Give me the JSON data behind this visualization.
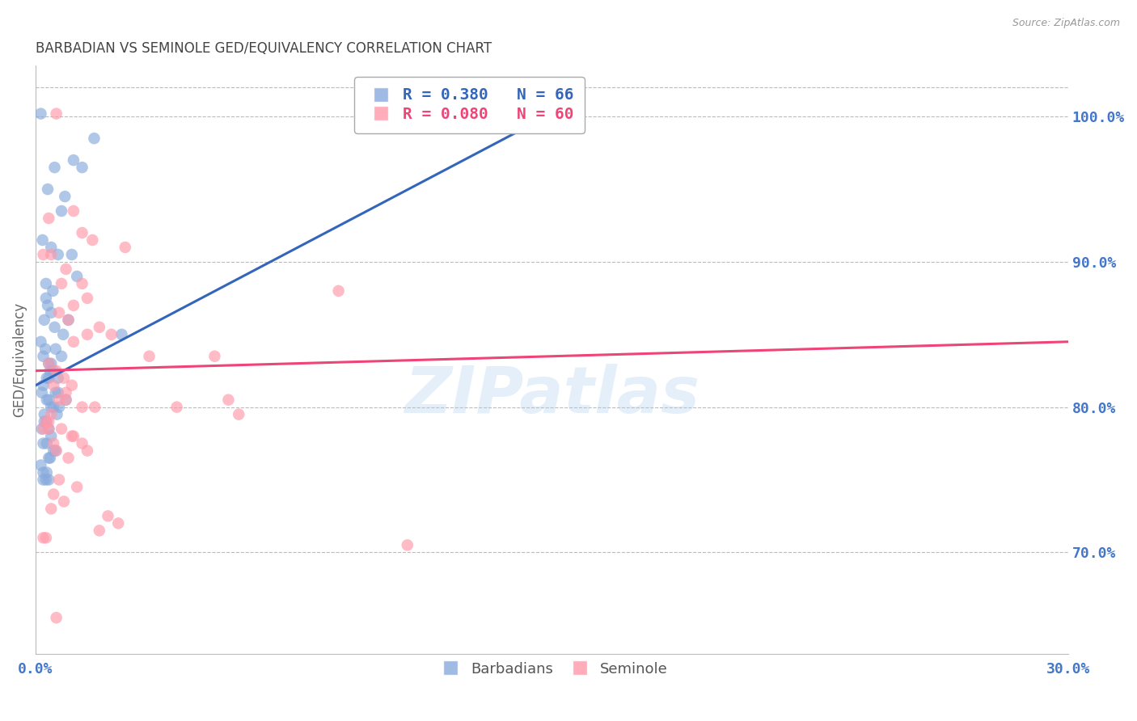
{
  "title": "BARBADIAN VS SEMINOLE GED/EQUIVALENCY CORRELATION CHART",
  "source": "Source: ZipAtlas.com",
  "ylabel": "GED/Equivalency",
  "right_yticks": [
    70.0,
    80.0,
    90.0,
    100.0
  ],
  "blue_label": "Barbadians",
  "pink_label": "Seminole",
  "blue_R": 0.38,
  "blue_N": 66,
  "pink_R": 0.08,
  "pink_N": 60,
  "blue_color": "#88AADD",
  "pink_color": "#FF99AA",
  "blue_line_color": "#3366BB",
  "pink_line_color": "#EE4477",
  "background_color": "#FFFFFF",
  "grid_color": "#BBBBBB",
  "title_color": "#444444",
  "axis_label_color": "#4477CC",
  "blue_x": [
    0.15,
    0.55,
    1.1,
    1.35,
    1.7,
    0.35,
    0.85,
    0.75,
    0.2,
    0.45,
    0.65,
    1.05,
    1.2,
    0.3,
    0.5,
    0.3,
    0.35,
    0.45,
    0.25,
    0.55,
    0.8,
    0.15,
    0.28,
    0.22,
    0.38,
    0.42,
    0.52,
    0.32,
    0.22,
    0.18,
    0.58,
    0.38,
    0.32,
    0.45,
    0.68,
    0.25,
    0.32,
    0.25,
    0.18,
    0.38,
    0.45,
    0.32,
    0.22,
    0.52,
    0.58,
    0.42,
    0.38,
    0.15,
    0.22,
    0.32,
    2.5,
    0.65,
    0.95,
    0.58,
    0.75,
    0.38,
    0.3,
    0.22,
    14.2,
    14.8,
    0.45,
    0.38,
    0.65,
    0.88,
    0.52,
    0.62
  ],
  "blue_y": [
    100.2,
    96.5,
    97.0,
    96.5,
    98.5,
    95.0,
    94.5,
    93.5,
    91.5,
    91.0,
    90.5,
    90.5,
    89.0,
    88.5,
    88.0,
    87.5,
    87.0,
    86.5,
    86.0,
    85.5,
    85.0,
    84.5,
    84.0,
    83.5,
    83.0,
    82.5,
    82.5,
    82.0,
    81.5,
    81.0,
    81.0,
    80.5,
    80.5,
    80.0,
    80.0,
    79.5,
    79.0,
    79.0,
    78.5,
    78.5,
    78.0,
    77.5,
    77.5,
    77.0,
    77.0,
    76.5,
    76.5,
    76.0,
    75.5,
    75.5,
    85.0,
    82.0,
    86.0,
    84.0,
    83.5,
    75.0,
    75.0,
    75.0,
    100.0,
    100.2,
    83.0,
    82.0,
    81.0,
    80.5,
    80.0,
    79.5
  ],
  "pink_x": [
    0.6,
    1.1,
    0.38,
    1.35,
    1.65,
    2.6,
    0.22,
    0.45,
    0.88,
    0.75,
    1.35,
    1.5,
    1.1,
    0.68,
    0.95,
    1.85,
    2.2,
    1.5,
    1.1,
    3.3,
    5.2,
    8.8,
    0.38,
    0.6,
    0.82,
    0.52,
    1.05,
    0.88,
    0.68,
    1.35,
    1.72,
    0.45,
    0.3,
    0.38,
    0.22,
    1.1,
    1.35,
    1.5,
    0.6,
    0.95,
    5.6,
    5.9,
    4.1,
    0.68,
    1.2,
    0.52,
    0.82,
    0.45,
    2.1,
    2.4,
    1.85,
    0.3,
    0.22,
    10.8,
    0.6,
    0.88,
    0.38,
    0.75,
    1.05,
    0.52
  ],
  "pink_y": [
    100.2,
    93.5,
    93.0,
    92.0,
    91.5,
    91.0,
    90.5,
    90.5,
    89.5,
    88.5,
    88.5,
    87.5,
    87.0,
    86.5,
    86.0,
    85.5,
    85.0,
    85.0,
    84.5,
    83.5,
    83.5,
    88.0,
    83.0,
    82.5,
    82.0,
    81.5,
    81.5,
    81.0,
    80.5,
    80.0,
    80.0,
    79.5,
    79.0,
    78.5,
    78.5,
    78.0,
    77.5,
    77.0,
    77.0,
    76.5,
    80.5,
    79.5,
    80.0,
    75.0,
    74.5,
    74.0,
    73.5,
    73.0,
    72.5,
    72.0,
    71.5,
    71.0,
    71.0,
    70.5,
    65.5,
    80.5,
    79.0,
    78.5,
    78.0,
    77.5
  ],
  "xmin": 0.0,
  "xmax": 30.0,
  "ymin": 63.0,
  "ymax": 103.5,
  "top_grid_y": 102.0,
  "legend_box_color": "#FFFFFF",
  "legend_border_color": "#AAAAAA",
  "blue_line_x0": 0.0,
  "blue_line_x1": 15.0,
  "blue_line_y0": 81.5,
  "blue_line_y1": 100.2,
  "pink_line_x0": 0.0,
  "pink_line_x1": 30.0,
  "pink_line_y0": 82.5,
  "pink_line_y1": 84.5
}
